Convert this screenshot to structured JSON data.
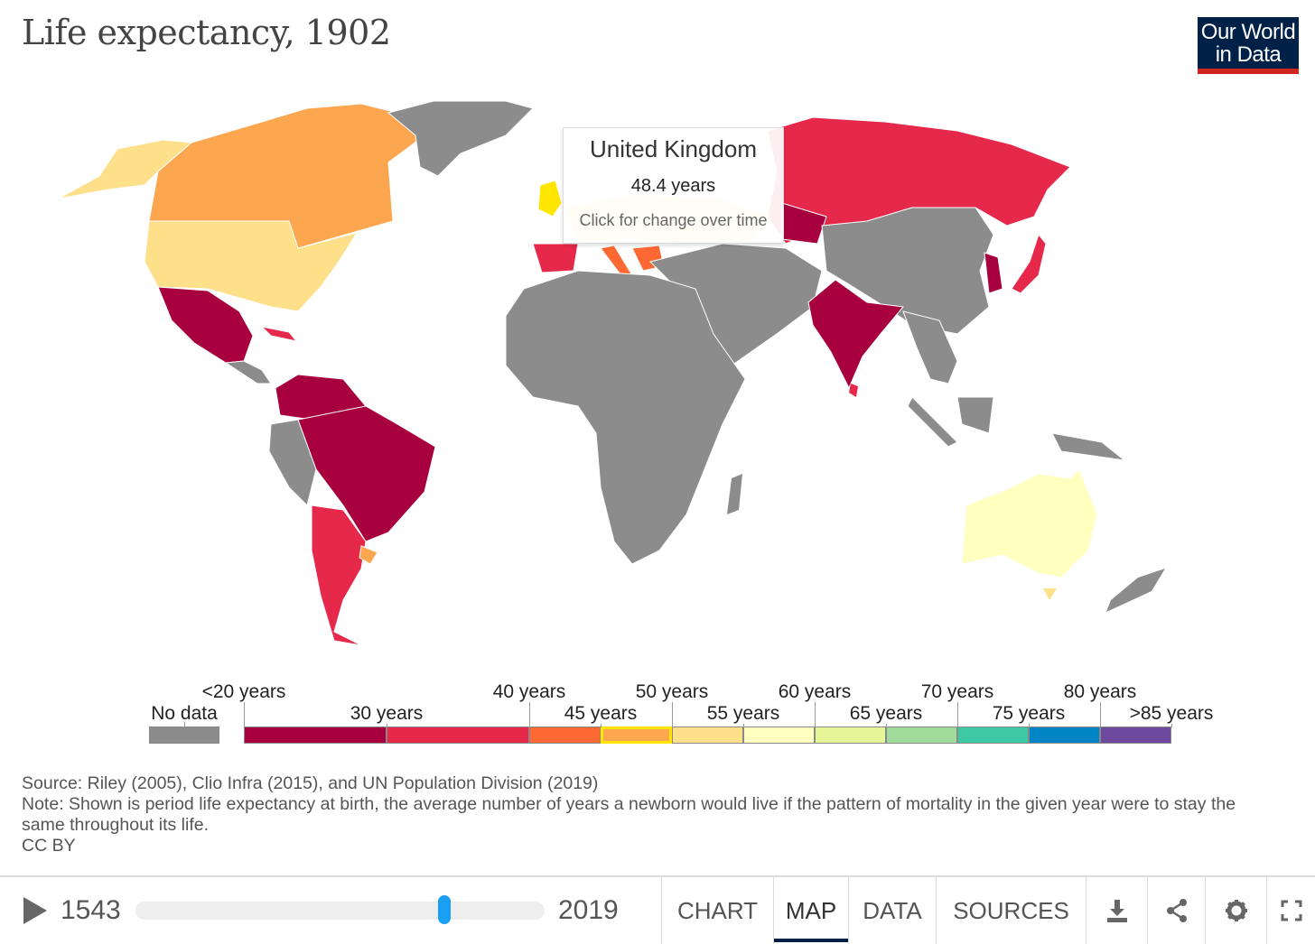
{
  "header": {
    "title": "Life expectancy, 1902",
    "logo_line1": "Our World",
    "logo_line2": "in Data"
  },
  "tooltip": {
    "country": "United Kingdom",
    "value": "48.4 years",
    "hint": "Click for change over time"
  },
  "legend": {
    "no_data": {
      "label": "No data",
      "color": "#8c8c8c"
    },
    "bins": [
      {
        "from": 20,
        "to": 30,
        "color": "#a8003e",
        "weight": 2
      },
      {
        "from": 30,
        "to": 40,
        "color": "#e6294a",
        "weight": 2
      },
      {
        "from": 40,
        "to": 45,
        "color": "#fe6832",
        "weight": 1
      },
      {
        "from": 45,
        "to": 50,
        "color": "#fda650",
        "weight": 1,
        "selected": true
      },
      {
        "from": 50,
        "to": 55,
        "color": "#fee08b",
        "weight": 1
      },
      {
        "from": 55,
        "to": 60,
        "color": "#ffffbf",
        "weight": 1
      },
      {
        "from": 60,
        "to": 65,
        "color": "#e6f598",
        "weight": 1
      },
      {
        "from": 65,
        "to": 70,
        "color": "#9fdb9b",
        "weight": 1
      },
      {
        "from": 70,
        "to": 75,
        "color": "#3ec9a5",
        "weight": 1
      },
      {
        "from": 75,
        "to": 80,
        "color": "#0085c6",
        "weight": 1
      },
      {
        "from": 80,
        "to": 85,
        "color": "#6e4a9e",
        "weight": 1
      }
    ],
    "labels": [
      "<20 years",
      "30 years",
      "40 years",
      "45 years",
      "50 years",
      "55 years",
      "60 years",
      "65 years",
      "70 years",
      "75 years",
      "80 years",
      ">85 years"
    ]
  },
  "footer": {
    "source": "Source: Riley (2005), Clio Infra (2015), and UN Population Division (2019)",
    "note": "Note: Shown is period life expectancy at birth, the average number of years a newborn would live if the pattern of mortality in the given year were to stay the same throughout its life.",
    "license": "CC BY"
  },
  "timeline": {
    "start": "1543",
    "end": "2019",
    "current": 1902,
    "min": 1543,
    "max": 2019
  },
  "tabs": [
    {
      "label": "CHART"
    },
    {
      "label": "MAP",
      "active": true
    },
    {
      "label": "DATA"
    },
    {
      "label": "SOURCES"
    }
  ],
  "icons": [
    "download-icon",
    "share-icon",
    "settings-icon",
    "fullscreen-icon"
  ]
}
